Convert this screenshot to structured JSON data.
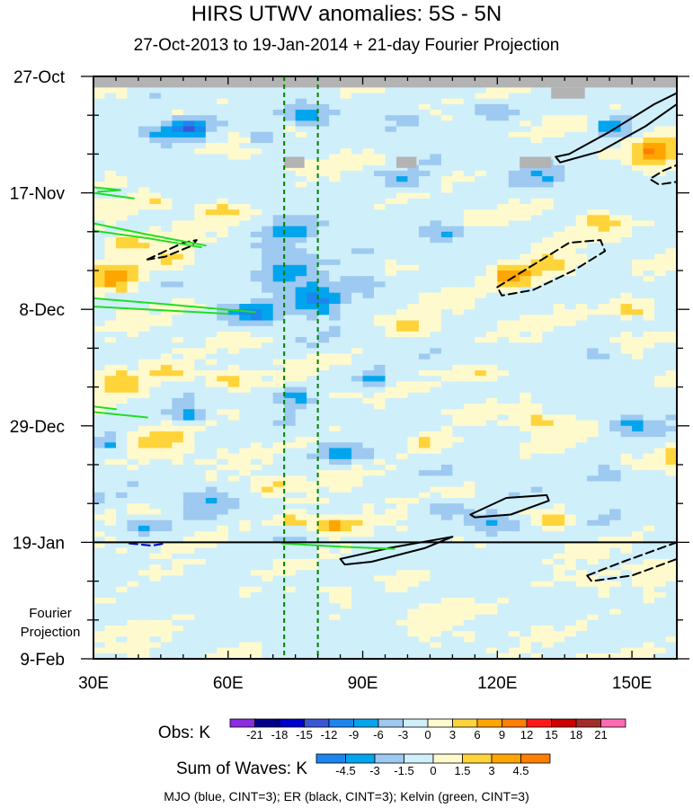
{
  "chart_data": {
    "type": "heatmap",
    "title": "HIRS UTWV anomalies: 5S - 5N",
    "subtitle": "27-Oct-2013 to 19-Jan-2014 + 21-day Fourier Projection",
    "x_axis": {
      "range_deg_east": [
        30,
        160
      ],
      "ticks": [
        {
          "value": 30,
          "label": "30E"
        },
        {
          "value": 60,
          "label": "60E"
        },
        {
          "value": 90,
          "label": "90E"
        },
        {
          "value": 120,
          "label": "120E"
        },
        {
          "value": 150,
          "label": "150E"
        }
      ]
    },
    "y_axis": {
      "range_days": [
        0,
        105
      ],
      "direction": "time increases downward",
      "ticks": [
        {
          "day": 0,
          "label": "27-Oct"
        },
        {
          "day": 21,
          "label": "17-Nov"
        },
        {
          "day": 42,
          "label": "8-Dec"
        },
        {
          "day": 63,
          "label": "29-Dec"
        },
        {
          "day": 84,
          "label": "19-Jan"
        },
        {
          "day": 105,
          "label": "9-Feb"
        }
      ],
      "projection_label": "Fourier\nProjection"
    },
    "observation_end_day": 84,
    "reference_longitudes": [
      72.5,
      80
    ],
    "missing_data": [
      {
        "lon": [
          30,
          160
        ],
        "day": [
          0,
          2
        ]
      },
      {
        "lon": [
          132,
          139.5
        ],
        "day": [
          2,
          4
        ]
      },
      {
        "lon": [
          72.5,
          77
        ],
        "day": [
          14.5,
          16.5
        ]
      },
      {
        "lon": [
          97.5,
          102
        ],
        "day": [
          14.5,
          16.5
        ]
      },
      {
        "lon": [
          125,
          132
        ],
        "day": [
          14.5,
          16.5
        ]
      }
    ],
    "obs_colorbar": {
      "label": "Obs: K",
      "levels": [
        -21,
        -18,
        -15,
        -12,
        -9,
        -6,
        -3,
        0,
        3,
        6,
        9,
        12,
        15,
        18,
        21
      ],
      "colors": [
        "#8b2be2",
        "#00008b",
        "#0000cd",
        "#3a57d6",
        "#1c86ee",
        "#00a5ee",
        "#9ec9f0",
        "#cfeffa",
        "#fffacd",
        "#ffd43b",
        "#ffa500",
        "#ff7f00",
        "#ff1a1a",
        "#cd0000",
        "#a52a2a",
        "#ff69b4"
      ]
    },
    "waves_colorbar": {
      "label": "Sum of Waves: K",
      "levels": [
        -4.5,
        -3,
        -1.5,
        0,
        1.5,
        3,
        4.5
      ],
      "colors": [
        "#1c86ee",
        "#00a5ee",
        "#9ec9f0",
        "#cfeffa",
        "#fffacd",
        "#ffd43b",
        "#ffa500",
        "#ff7f00"
      ]
    },
    "field_blobs": [
      {
        "lon": 45,
        "day": 10,
        "rlon": 6,
        "rday": 2.2,
        "v": -7
      },
      {
        "lon": 52,
        "day": 9,
        "rlon": 4,
        "rday": 2,
        "v": -10
      },
      {
        "lon": 68,
        "day": 11,
        "rlon": 3.5,
        "rday": 1.6,
        "v": -8
      },
      {
        "lon": 78,
        "day": 7,
        "rlon": 5,
        "rday": 1.8,
        "v": -6
      },
      {
        "lon": 100,
        "day": 8,
        "rlon": 4,
        "rday": 1.5,
        "v": -5
      },
      {
        "lon": 118,
        "day": 6,
        "rlon": 6,
        "rday": 1.6,
        "v": -5
      },
      {
        "lon": 145,
        "day": 9,
        "rlon": 4,
        "rday": 2,
        "v": -7
      },
      {
        "lon": 100,
        "day": 19,
        "rlon": 5,
        "rday": 2,
        "v": -6
      },
      {
        "lon": 130,
        "day": 18,
        "rlon": 5,
        "rday": 1.8,
        "v": -5
      },
      {
        "lon": 35,
        "day": 19,
        "rlon": 4,
        "rday": 1.5,
        "v": 5
      },
      {
        "lon": 58,
        "day": 24,
        "rlon": 5,
        "rday": 1.6,
        "v": 7
      },
      {
        "lon": 44,
        "day": 23,
        "rlon": 4,
        "rday": 1.2,
        "v": 4
      },
      {
        "lon": 35,
        "day": 36,
        "rlon": 6,
        "rday": 3,
        "v": 9
      },
      {
        "lon": 38,
        "day": 30,
        "rlon": 4,
        "rday": 1.5,
        "v": 7
      },
      {
        "lon": 47,
        "day": 33,
        "rlon": 4,
        "rday": 1.6,
        "v": 5
      },
      {
        "lon": 72,
        "day": 34,
        "rlon": 7,
        "rday": 4,
        "v": -7
      },
      {
        "lon": 80,
        "day": 40,
        "rlon": 6,
        "rday": 3,
        "v": -9
      },
      {
        "lon": 66,
        "day": 43,
        "rlon": 5,
        "rday": 2,
        "v": -8
      },
      {
        "lon": 90,
        "day": 37,
        "rlon": 5,
        "rday": 2.5,
        "v": -6
      },
      {
        "lon": 75,
        "day": 28,
        "rlon": 6,
        "rday": 2,
        "v": -5
      },
      {
        "lon": 108,
        "day": 28,
        "rlon": 4,
        "rday": 1.8,
        "v": -5
      },
      {
        "lon": 123,
        "day": 36,
        "rlon": 5,
        "rday": 2,
        "v": 9
      },
      {
        "lon": 132,
        "day": 34,
        "rlon": 6,
        "rday": 2,
        "v": 7
      },
      {
        "lon": 143,
        "day": 26,
        "rlon": 5,
        "rday": 1.6,
        "v": 6
      },
      {
        "lon": 155,
        "day": 14,
        "rlon": 5,
        "rday": 3,
        "v": 8
      },
      {
        "lon": 150,
        "day": 42,
        "rlon": 6,
        "rday": 1.8,
        "v": 6
      },
      {
        "lon": 100,
        "day": 45,
        "rlon": 6,
        "rday": 1.8,
        "v": 5
      },
      {
        "lon": 36,
        "day": 55,
        "rlon": 6,
        "rday": 2.5,
        "v": 8
      },
      {
        "lon": 46,
        "day": 53,
        "rlon": 4,
        "rday": 1.4,
        "v": 6
      },
      {
        "lon": 60,
        "day": 55,
        "rlon": 4,
        "rday": 1.6,
        "v": 6
      },
      {
        "lon": 75,
        "day": 58,
        "rlon": 4,
        "rday": 1.8,
        "v": -6
      },
      {
        "lon": 52,
        "day": 61,
        "rlon": 3.5,
        "rday": 1.2,
        "v": -8
      },
      {
        "lon": 92,
        "day": 55,
        "rlon": 4,
        "rday": 1.5,
        "v": -6
      },
      {
        "lon": 117,
        "day": 54,
        "rlon": 6,
        "rday": 1.6,
        "v": 5
      },
      {
        "lon": 143,
        "day": 50,
        "rlon": 5,
        "rday": 1.6,
        "v": -5
      },
      {
        "lon": 150,
        "day": 63,
        "rlon": 6,
        "rday": 1.8,
        "v": -6
      },
      {
        "lon": 130,
        "day": 62,
        "rlon": 5,
        "rday": 1.5,
        "v": 6
      },
      {
        "lon": 45,
        "day": 66,
        "rlon": 7,
        "rday": 2,
        "v": 5
      },
      {
        "lon": 33,
        "day": 66,
        "rlon": 3,
        "rday": 1.5,
        "v": -7
      },
      {
        "lon": 85,
        "day": 68,
        "rlon": 5,
        "rday": 1.8,
        "v": -5
      },
      {
        "lon": 104,
        "day": 66,
        "rlon": 5,
        "rday": 1.6,
        "v": 5
      },
      {
        "lon": 145,
        "day": 72,
        "rlon": 4,
        "rday": 2,
        "v": -5
      },
      {
        "lon": 160,
        "day": 69,
        "rlon": 3,
        "rday": 2,
        "v": 6
      },
      {
        "lon": 55,
        "day": 76,
        "rlon": 6,
        "rday": 1.6,
        "v": -5
      },
      {
        "lon": 70,
        "day": 74,
        "rlon": 4,
        "rday": 1.5,
        "v": 5
      },
      {
        "lon": 84,
        "day": 81,
        "rlon": 6,
        "rday": 1.6,
        "v": 9
      },
      {
        "lon": 74,
        "day": 80,
        "rlon": 3,
        "rday": 1.2,
        "v": 6
      },
      {
        "lon": 40,
        "day": 81,
        "rlon": 5,
        "rday": 1.4,
        "v": -6
      },
      {
        "lon": 108,
        "day": 78,
        "rlon": 5,
        "rday": 1.6,
        "v": -5
      },
      {
        "lon": 120,
        "day": 81,
        "rlon": 6,
        "rday": 1.8,
        "v": -7
      },
      {
        "lon": 133,
        "day": 80,
        "rlon": 4,
        "rday": 1.4,
        "v": 5
      },
      {
        "lon": 92,
        "day": 93,
        "rlon": 4,
        "rday": 2.5,
        "v": -3
      },
      {
        "lon": 98,
        "day": 91,
        "rlon": 5,
        "rday": 2.5,
        "v": 2
      },
      {
        "lon": 108,
        "day": 97,
        "rlon": 7,
        "rday": 2.4,
        "v": 2.2
      },
      {
        "lon": 140,
        "day": 92,
        "rlon": 8,
        "rday": 2.5,
        "v": 2
      },
      {
        "lon": 155,
        "day": 89,
        "rlon": 5,
        "rday": 1.8,
        "v": 2.5
      },
      {
        "lon": 38,
        "day": 98,
        "rlon": 8,
        "rday": 4,
        "v": 1
      },
      {
        "lon": 74,
        "day": 99,
        "rlon": 7,
        "rday": 3,
        "v": -1
      },
      {
        "lon": 60,
        "day": 90,
        "rlon": 8,
        "rday": 3,
        "v": -1
      }
    ],
    "wave_contours": [
      {
        "wave": "ER",
        "sign": "positive",
        "points": [
          [
            136,
            14
          ],
          [
            145,
            10
          ],
          [
            155,
            5
          ],
          [
            160,
            3
          ],
          [
            160,
            5
          ],
          [
            153,
            9
          ],
          [
            143,
            13.5
          ],
          [
            134,
            15.5
          ],
          [
            133,
            14.5
          ],
          [
            136,
            14
          ]
        ]
      },
      {
        "wave": "ER",
        "sign": "negative",
        "points": [
          [
            157,
            17
          ],
          [
            160,
            16
          ],
          [
            160,
            19
          ],
          [
            156,
            19.5
          ],
          [
            154,
            18.5
          ],
          [
            157,
            17
          ]
        ]
      },
      {
        "wave": "ER",
        "sign": "negative",
        "points": [
          [
            42,
            33
          ],
          [
            50,
            30
          ],
          [
            53,
            29.5
          ],
          [
            52,
            30.5
          ],
          [
            46,
            32.5
          ],
          [
            42,
            33
          ]
        ]
      },
      {
        "wave": "ER",
        "sign": "negative",
        "points": [
          [
            120,
            38
          ],
          [
            128,
            34
          ],
          [
            136,
            30
          ],
          [
            143,
            29.5
          ],
          [
            144,
            31.5
          ],
          [
            137,
            35
          ],
          [
            128,
            38.5
          ],
          [
            121,
            39.5
          ],
          [
            120,
            38
          ]
        ]
      },
      {
        "wave": "ER",
        "sign": "positive",
        "points": [
          [
            114,
            79
          ],
          [
            122,
            76
          ],
          [
            131,
            75.5
          ],
          [
            131.5,
            76.5
          ],
          [
            123,
            79
          ],
          [
            115,
            79.5
          ],
          [
            114,
            79
          ]
        ]
      },
      {
        "wave": "ER",
        "sign": "positive",
        "points": [
          [
            85,
            87
          ],
          [
            96,
            85
          ],
          [
            110,
            83
          ],
          [
            104,
            85
          ],
          [
            92,
            87.5
          ],
          [
            86,
            88
          ],
          [
            85,
            87
          ]
        ]
      },
      {
        "wave": "ER",
        "sign": "negative",
        "points": [
          [
            140,
            90
          ],
          [
            148,
            87.5
          ],
          [
            160,
            84
          ],
          [
            160,
            87
          ],
          [
            150,
            90
          ],
          [
            141,
            91
          ],
          [
            140,
            90
          ]
        ]
      },
      {
        "wave": "Kelvin",
        "sign": "positive",
        "points": [
          [
            30,
            20
          ],
          [
            36,
            20.5
          ],
          [
            31,
            20.8
          ]
        ]
      },
      {
        "wave": "Kelvin",
        "sign": "positive",
        "points": [
          [
            30,
            21
          ],
          [
            39,
            22
          ]
        ]
      },
      {
        "wave": "Kelvin",
        "sign": "positive",
        "points": [
          [
            30,
            26.5
          ],
          [
            42,
            28.5
          ],
          [
            55,
            30.5
          ]
        ]
      },
      {
        "wave": "Kelvin",
        "sign": "positive",
        "points": [
          [
            30,
            27.8
          ],
          [
            43,
            29.3
          ],
          [
            54,
            30.8
          ]
        ]
      },
      {
        "wave": "Kelvin",
        "sign": "positive",
        "points": [
          [
            30,
            40
          ],
          [
            45,
            41
          ],
          [
            66,
            42.5
          ]
        ]
      },
      {
        "wave": "Kelvin",
        "sign": "positive",
        "points": [
          [
            30,
            41.5
          ],
          [
            46,
            42.2
          ],
          [
            60,
            42.8
          ]
        ]
      },
      {
        "wave": "Kelvin",
        "sign": "positive",
        "points": [
          [
            30,
            59.5
          ],
          [
            35,
            60
          ]
        ]
      },
      {
        "wave": "Kelvin",
        "sign": "positive",
        "points": [
          [
            30,
            60.5
          ],
          [
            42,
            61.5
          ]
        ]
      },
      {
        "wave": "Kelvin",
        "sign": "positive",
        "points": [
          [
            72,
            84.2
          ],
          [
            85,
            84.8
          ],
          [
            97,
            85.2
          ]
        ]
      },
      {
        "wave": "MJO",
        "sign": "negative",
        "points": [
          [
            38,
            84.2
          ],
          [
            43,
            84.6
          ],
          [
            46,
            84.2
          ]
        ]
      }
    ],
    "legend_note": "MJO (blue, CINT=3); ER (black, CINT=3); Kelvin (green, CINT=3)"
  }
}
